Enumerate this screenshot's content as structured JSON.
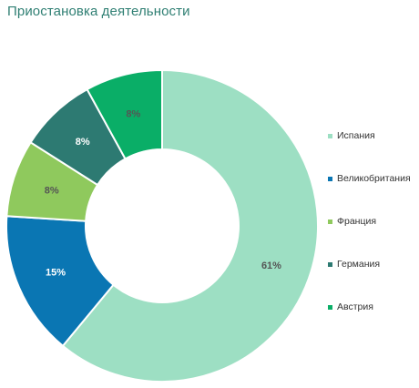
{
  "title": "Приостановка деятельности",
  "chart_data": {
    "type": "pie",
    "title": "Приостановка деятельности",
    "donut": true,
    "legend_position": "right",
    "series": [
      {
        "name": "Испания",
        "value": 61,
        "label": "61%",
        "color": "#9ddfc3"
      },
      {
        "name": "Великобритания",
        "value": 15,
        "label": "15%",
        "color": "#0a76b3"
      },
      {
        "name": "Франция",
        "value": 8,
        "label": "8%",
        "color": "#8fc95d"
      },
      {
        "name": "Германия",
        "value": 8,
        "label": "8%",
        "color": "#2d7a72"
      },
      {
        "name": "Австрия",
        "value": 8,
        "label": "8%",
        "color": "#0aae67"
      }
    ],
    "label_colors": [
      "#555555",
      "#ffffff",
      "#555555",
      "#ffffff",
      "#555555"
    ]
  }
}
